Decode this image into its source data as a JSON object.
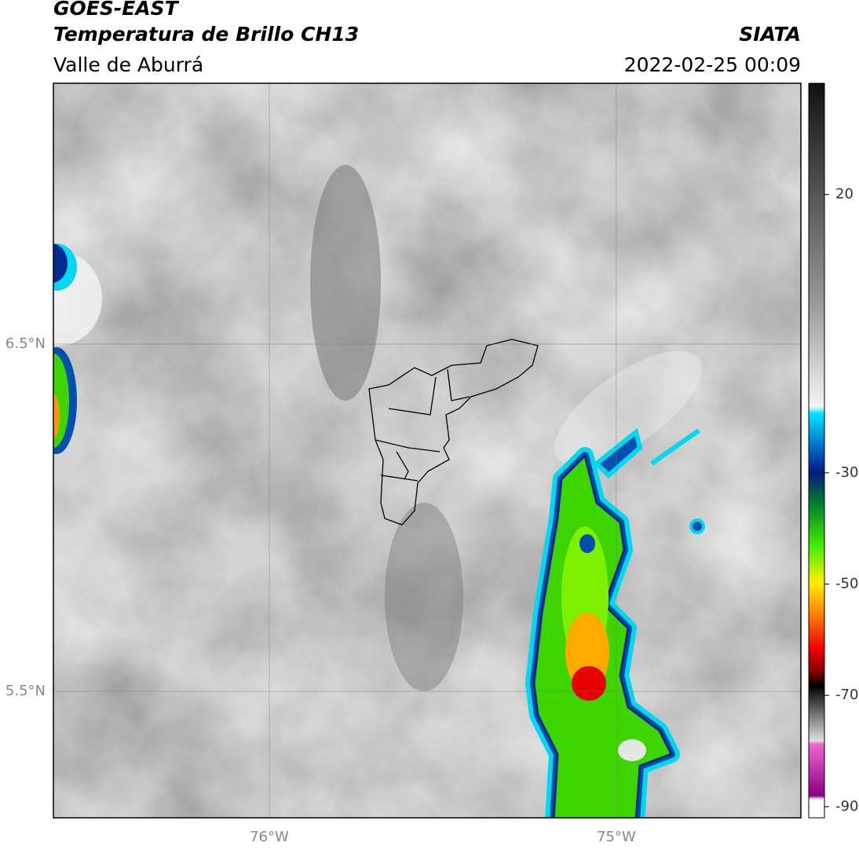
{
  "header": {
    "satellite": "GOES-EAST",
    "product": "Temperatura de Brillo CH13",
    "region": "Valle de Aburrá",
    "source": "SIATA",
    "datetime": "2022-02-25 00:09"
  },
  "map": {
    "xlim": [
      -76.622,
      -74.468
    ],
    "ylim": [
      5.136,
      7.251
    ],
    "xticks": [
      {
        "value": -76,
        "label": "76°W"
      },
      {
        "value": -75,
        "label": "75°W"
      }
    ],
    "yticks": [
      {
        "value": 6.5,
        "label": "6.5°N"
      },
      {
        "value": 5.5,
        "label": "5.5°N"
      }
    ],
    "grid": true
  },
  "colorbar": {
    "lim": [
      -92,
      40
    ],
    "ticks": [
      20,
      -30,
      -50,
      -70,
      -90
    ]
  }
}
